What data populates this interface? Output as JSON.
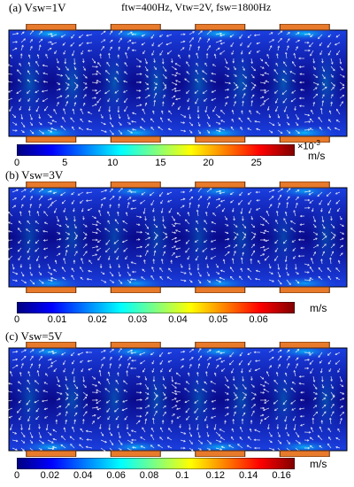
{
  "header": "ftw=400Hz, Vtw=2V, fsw=1800Hz",
  "panels": [
    {
      "label": "(a) Vsw=1V",
      "ticks": [
        "0",
        "5",
        "10",
        "15",
        "20",
        "25"
      ],
      "tick_values": [
        0,
        5,
        10,
        15,
        20,
        25
      ],
      "range": [
        0,
        29
      ],
      "multiplier_base": "×10",
      "multiplier_exp": "-3",
      "unit": "m/s"
    },
    {
      "label": "(b) Vsw=3V",
      "ticks": [
        "0",
        "0.01",
        "0.02",
        "0.03",
        "0.04",
        "0.05",
        "0.06"
      ],
      "tick_values": [
        0,
        0.01,
        0.02,
        0.03,
        0.04,
        0.05,
        0.06
      ],
      "range": [
        0,
        0.069
      ],
      "unit": "m/s"
    },
    {
      "label": "(c) Vsw=5V",
      "ticks": [
        "0",
        "0.02",
        "0.04",
        "0.06",
        "0.08",
        "0.1",
        "0.12",
        "0.14",
        "0.16"
      ],
      "tick_values": [
        0,
        0.02,
        0.04,
        0.06,
        0.08,
        0.1,
        0.12,
        0.14,
        0.16
      ],
      "range": [
        0,
        0.168
      ],
      "unit": "m/s"
    }
  ],
  "colors": {
    "field_dark": "#0a0a8c",
    "field_mid": "#1a3fe0",
    "hot": "#00e0ff",
    "electrode": "#e87a2c",
    "electrode_edge": "#5a2a05",
    "arrow": "#ffffff",
    "colormap": [
      "#000080",
      "#0000ff",
      "#0080ff",
      "#00ffff",
      "#80ff80",
      "#ffff00",
      "#ff8000",
      "#ff0000",
      "#800000"
    ]
  }
}
